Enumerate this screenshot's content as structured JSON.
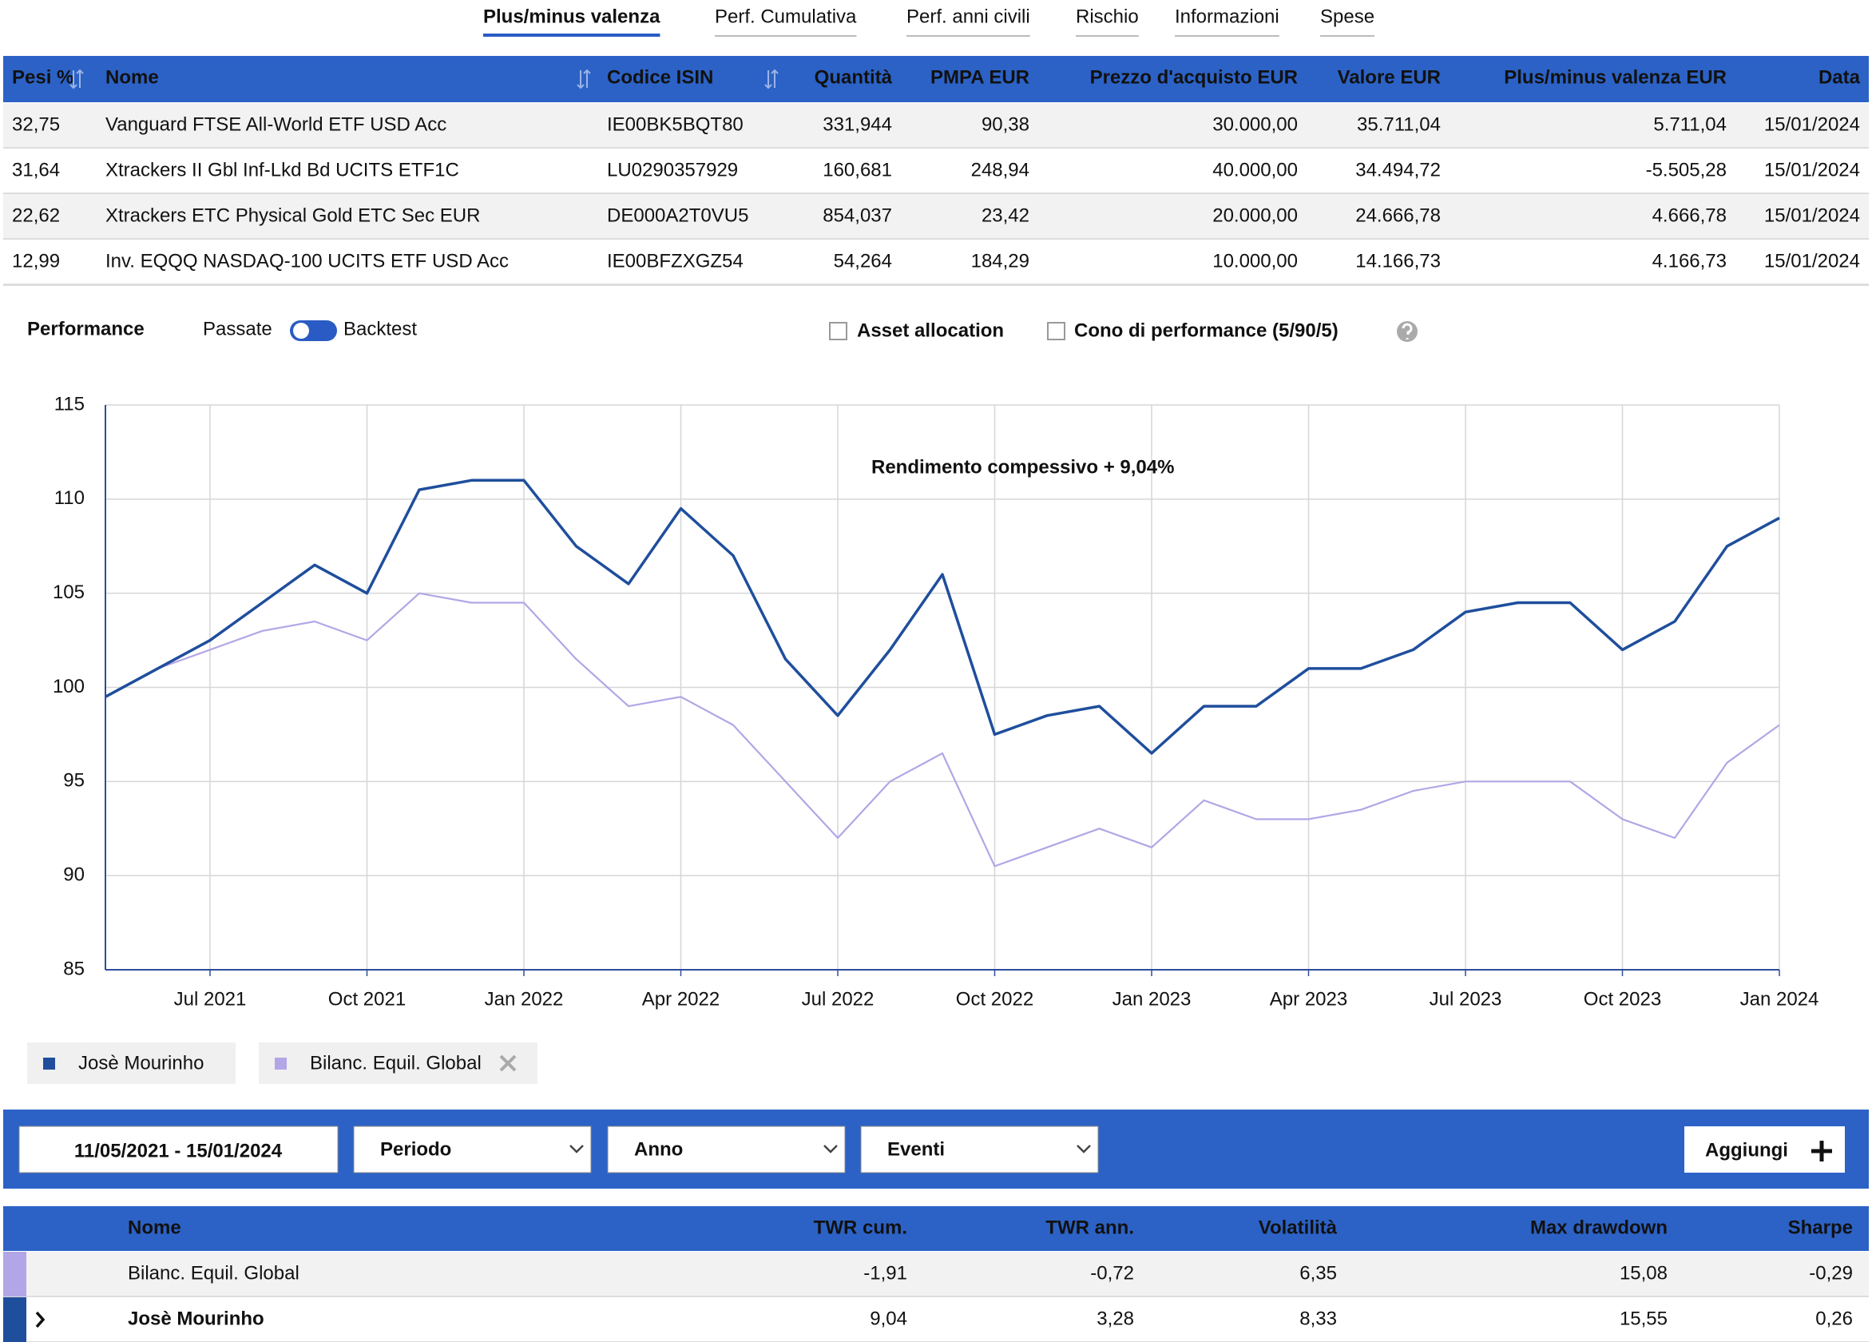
{
  "tabs": [
    "Plus/minus valenza",
    "Perf. Cumulativa",
    "Perf. anni civili",
    "Rischio",
    "Informazioni",
    "Spese"
  ],
  "holdings": {
    "headers": [
      "Pesi %",
      "Nome",
      "Codice ISIN",
      "Quantità",
      "PMPA EUR",
      "Prezzo d'acquisto EUR",
      "Valore EUR",
      "Plus/minus valenza EUR",
      "Data"
    ],
    "rows": [
      [
        "32,75",
        "Vanguard FTSE All-World ETF USD Acc",
        "IE00BK5BQT80",
        "331,944",
        "90,38",
        "30.000,00",
        "35.711,04",
        "5.711,04",
        "15/01/2024"
      ],
      [
        "31,64",
        "Xtrackers II Gbl Inf-Lkd Bd UCITS ETF1C",
        "LU0290357929",
        "160,681",
        "248,94",
        "40.000,00",
        "34.494,72",
        "-5.505,28",
        "15/01/2024"
      ],
      [
        "22,62",
        "Xtrackers ETC Physical Gold ETC Sec EUR",
        "DE000A2T0VU5",
        "854,037",
        "23,42",
        "20.000,00",
        "24.666,78",
        "4.666,78",
        "15/01/2024"
      ],
      [
        "12,99",
        "Inv. EQQQ NASDAQ-100 UCITS ETF USD Acc",
        "IE00BFZXGZ54",
        "54,264",
        "184,29",
        "10.000,00",
        "14.166,73",
        "4.166,73",
        "15/01/2024"
      ]
    ]
  },
  "controls": {
    "section": "Performance",
    "toggle_left": "Passate",
    "toggle_right": "Backtest",
    "asset_allocation": "Asset allocation",
    "cone": "Cono di performance (5/90/5)"
  },
  "chart_data": {
    "type": "line",
    "annotation": "Rendimento compessivo + 9,04%",
    "x": [
      "2021-05",
      "2021-06",
      "2021-07",
      "2021-08",
      "2021-09",
      "2021-10",
      "2021-11",
      "2021-12",
      "2022-01",
      "2022-02",
      "2022-03",
      "2022-04",
      "2022-05",
      "2022-06",
      "2022-07",
      "2022-08",
      "2022-09",
      "2022-10",
      "2022-11",
      "2022-12",
      "2023-01",
      "2023-02",
      "2023-03",
      "2023-04",
      "2023-05",
      "2023-06",
      "2023-07",
      "2023-08",
      "2023-09",
      "2023-10",
      "2023-11",
      "2023-12",
      "2024-01"
    ],
    "series": [
      {
        "name": "Josè Mourinho",
        "color": "#1f4e9c",
        "values": [
          99.5,
          101,
          102.5,
          104.5,
          106.5,
          105,
          110.5,
          111,
          111,
          107.5,
          105.5,
          109.5,
          107,
          101.5,
          98.5,
          102,
          106,
          97.5,
          98.5,
          99,
          96.5,
          99,
          99,
          101,
          101,
          102,
          104,
          104.5,
          104.5,
          102,
          103.5,
          107.5,
          109
        ]
      },
      {
        "name": "Bilanc. Equil. Global",
        "color": "#b3a6e6",
        "values": [
          99.5,
          101,
          102,
          103,
          103.5,
          102.5,
          105,
          104.5,
          104.5,
          101.5,
          99,
          99.5,
          98,
          95,
          92,
          95,
          96.5,
          90.5,
          91.5,
          92.5,
          91.5,
          94,
          93,
          93,
          93.5,
          94.5,
          95,
          95,
          95,
          93,
          92,
          96,
          98
        ]
      }
    ],
    "ylim": [
      85,
      115
    ],
    "yticks": [
      85,
      90,
      95,
      100,
      105,
      110,
      115
    ],
    "xticks": [
      {
        "value": "2021-07",
        "label": "Jul 2021"
      },
      {
        "value": "2021-10",
        "label": "Oct 2021"
      },
      {
        "value": "2022-01",
        "label": "Jan 2022"
      },
      {
        "value": "2022-04",
        "label": "Apr 2022"
      },
      {
        "value": "2022-07",
        "label": "Jul 2022"
      },
      {
        "value": "2022-10",
        "label": "Oct 2022"
      },
      {
        "value": "2023-01",
        "label": "Jan 2023"
      },
      {
        "value": "2023-04",
        "label": "Apr 2023"
      },
      {
        "value": "2023-07",
        "label": "Jul 2023"
      },
      {
        "value": "2023-10",
        "label": "Oct 2023"
      },
      {
        "value": "2024-01",
        "label": "Jan 2024"
      }
    ],
    "grid": true
  },
  "filters": {
    "date_range": "11/05/2021 - 15/01/2024",
    "period": "Periodo",
    "year": "Anno",
    "events": "Eventi",
    "add": "Aggiungi"
  },
  "stats": {
    "headers": [
      "Nome",
      "TWR cum.",
      "TWR ann.",
      "Volatilità",
      "Max drawdown",
      "Sharpe"
    ],
    "rows": [
      [
        "Bilanc. Equil. Global",
        "-1,91",
        "-0,72",
        "6,35",
        "15,08",
        "-0,29"
      ],
      [
        "Josè Mourinho",
        "9,04",
        "3,28",
        "8,33",
        "15,55",
        "0,26"
      ]
    ]
  }
}
